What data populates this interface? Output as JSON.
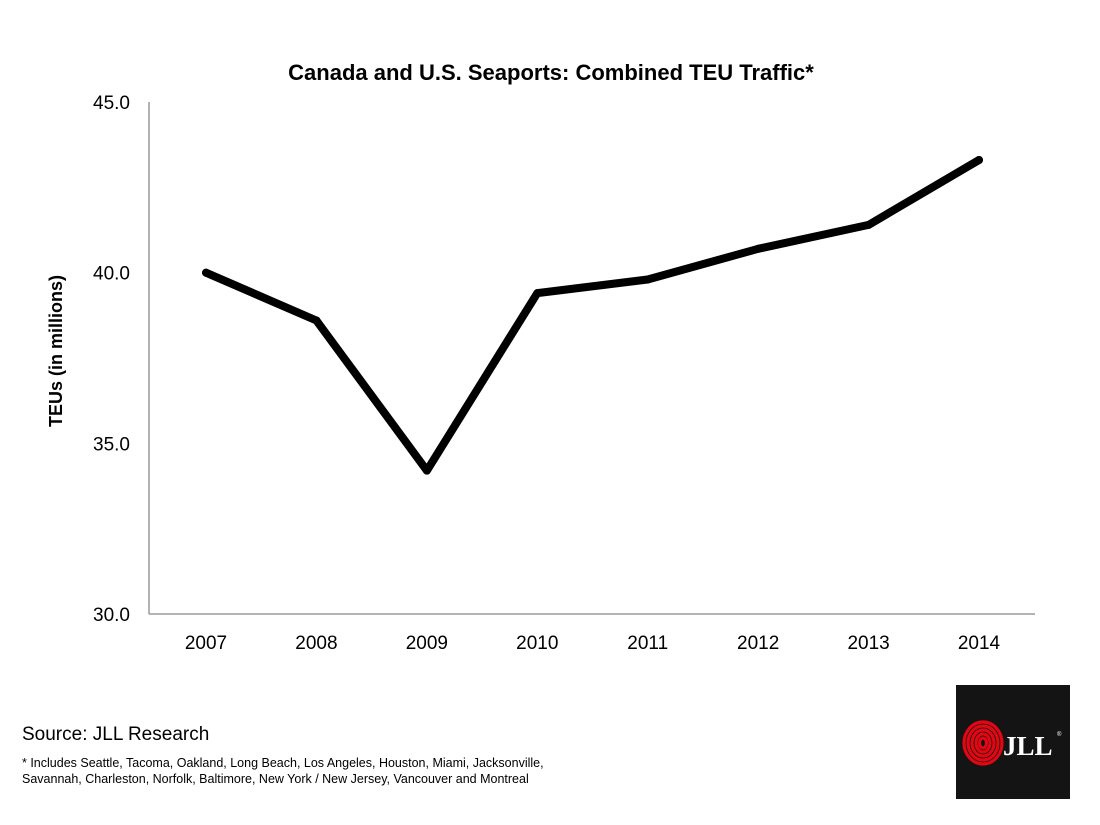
{
  "chart_data": {
    "type": "line",
    "title": "Canada and U.S. Seaports: Combined TEU Traffic*",
    "ylabel": "TEUs (in millions)",
    "xlabel": "",
    "categories": [
      "2007",
      "2008",
      "2009",
      "2010",
      "2011",
      "2012",
      "2013",
      "2014"
    ],
    "values": [
      40.0,
      38.6,
      34.2,
      39.4,
      39.8,
      40.7,
      41.4,
      43.3
    ],
    "ylim": [
      30.0,
      45.0
    ],
    "yticks": [
      "30.0",
      "35.0",
      "40.0",
      "45.0"
    ],
    "grid": false,
    "legend": "none",
    "line_color": "#000000"
  },
  "source": "Source: JLL Research",
  "footnote": "* Includes Seattle, Tacoma, Oakland, Long Beach, Los Angeles, Houston, Miami, Jacksonville, Savannah, Charleston, Norfolk, Baltimore, New York / New Jersey, Vancouver and Montreal",
  "logo": {
    "text": "JLL",
    "registered": "®",
    "accent_color": "#e30613",
    "background_color": "#141414"
  }
}
